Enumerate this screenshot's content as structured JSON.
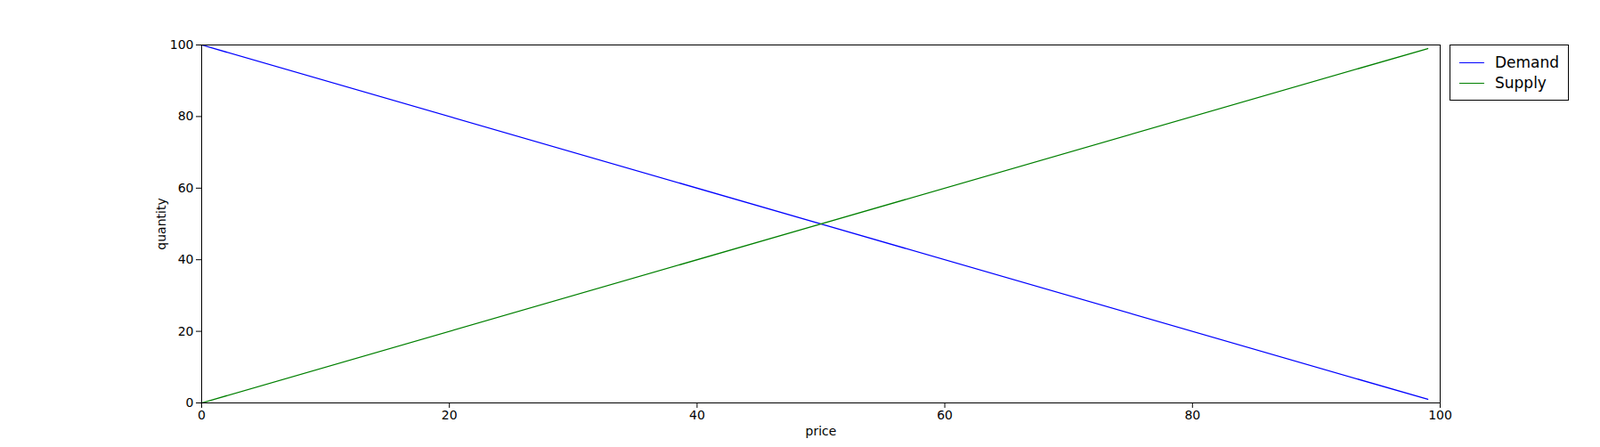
{
  "chart_data": {
    "type": "line",
    "x_label": "price",
    "y_label": "quantity",
    "x": [
      0,
      99
    ],
    "series": [
      {
        "name": "Demand",
        "color": "#0000ff",
        "values": [
          100,
          1
        ]
      },
      {
        "name": "Supply",
        "color": "#008000",
        "values": [
          0,
          99
        ]
      }
    ],
    "xlim": [
      0,
      100
    ],
    "ylim": [
      0,
      100
    ],
    "xticks": [
      0,
      20,
      40,
      60,
      80,
      100
    ],
    "yticks": [
      0,
      20,
      40,
      60,
      80,
      100
    ],
    "grid": false,
    "legend": "upper right"
  }
}
